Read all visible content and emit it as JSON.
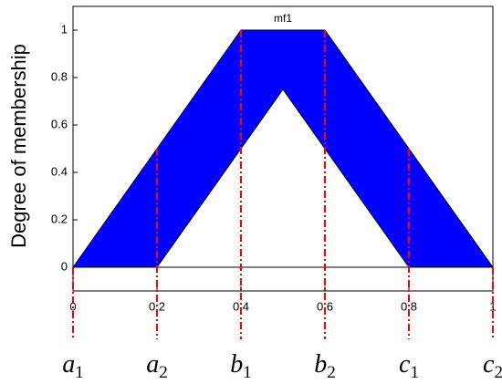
{
  "chart_data": {
    "type": "interval-type2-mf",
    "label": "mf1",
    "ylabel": "Degree of membership",
    "upper": {
      "x": [
        0,
        0.4,
        0.6,
        1
      ],
      "values": [
        0,
        1,
        1,
        0
      ]
    },
    "lower": {
      "x": [
        0.2,
        0.5,
        0.8
      ],
      "values": [
        0,
        0.75,
        0
      ]
    },
    "fill_color": "#0000ff",
    "marker_color": "#ff0000",
    "xlim": [
      0,
      1
    ],
    "ylim": [
      -0.1,
      1.1
    ],
    "xticks": [
      0,
      0.2,
      0.4,
      0.6,
      0.8,
      1
    ],
    "yticks": [
      0,
      0.2,
      0.4,
      0.6,
      0.8,
      1
    ],
    "markers": [
      {
        "x": 0,
        "label": "a",
        "sub": "1"
      },
      {
        "x": 0.2,
        "label": "a",
        "sub": "2"
      },
      {
        "x": 0.4,
        "label": "b",
        "sub": "1"
      },
      {
        "x": 0.6,
        "label": "b",
        "sub": "2"
      },
      {
        "x": 0.8,
        "label": "c",
        "sub": "1"
      },
      {
        "x": 1,
        "label": "c",
        "sub": "2"
      }
    ]
  }
}
